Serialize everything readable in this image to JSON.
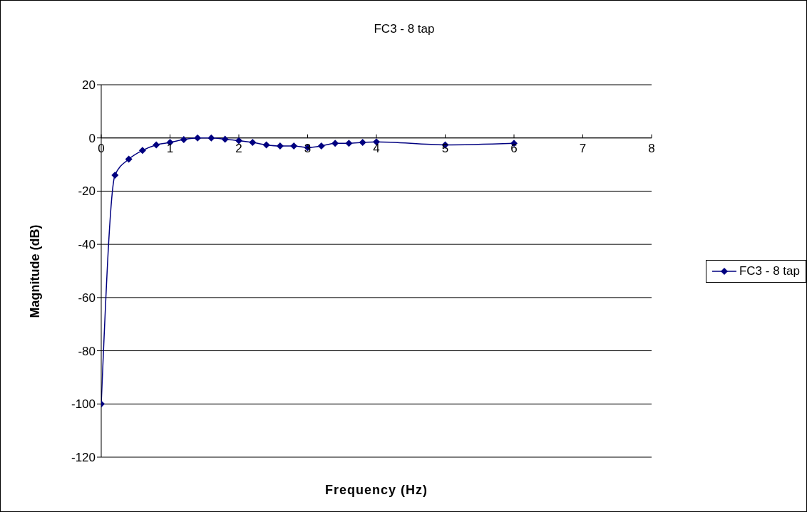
{
  "chart_data": {
    "type": "line",
    "title": "FC3 - 8 tap",
    "xlabel": "Frequency (Hz)",
    "ylabel": "Magnitude (dB)",
    "x": [
      0,
      0.2,
      0.4,
      0.6,
      0.8,
      1.0,
      1.2,
      1.4,
      1.6,
      1.8,
      2.0,
      2.2,
      2.4,
      2.6,
      2.8,
      3.0,
      3.2,
      3.4,
      3.6,
      3.8,
      4.0,
      5,
      6
    ],
    "series": [
      {
        "name": "FC3 - 8 tap",
        "color": "#000080",
        "values": [
          -100,
          -14,
          -8,
          -4.7,
          -2.6,
          -1.7,
          -0.6,
          0,
          0,
          -0.5,
          -1,
          -1.7,
          -2.6,
          -3,
          -3,
          -3.6,
          -3,
          -2,
          -2,
          -1.7,
          -1.5,
          -2.6,
          -2
        ]
      }
    ],
    "xlim": [
      0,
      8
    ],
    "xticks": [
      0,
      1,
      2,
      3,
      4,
      5,
      6,
      7,
      8
    ],
    "ylim": [
      -120,
      20
    ],
    "yticks": [
      -120,
      -100,
      -80,
      -60,
      -40,
      -20,
      0,
      20
    ],
    "grid": "y",
    "legend": "right",
    "marker": "diamond",
    "line_style": "solid"
  }
}
